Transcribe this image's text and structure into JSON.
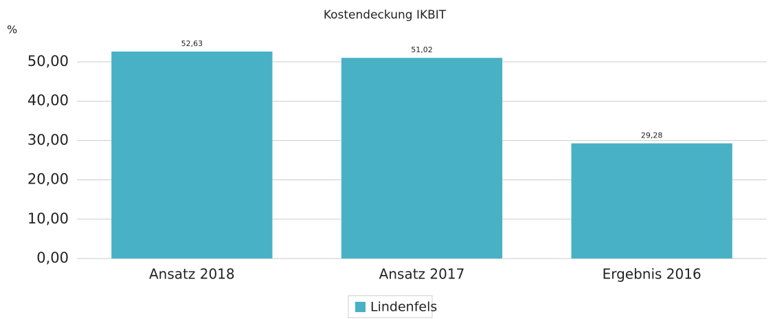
{
  "chart_data": {
    "type": "bar",
    "title": "Kostendeckung IKBIT",
    "y_label": "%",
    "categories": [
      "Ansatz 2018",
      "Ansatz 2017",
      "Ergebnis 2016"
    ],
    "series": [
      {
        "name": "Lindenfels",
        "color": "#48b1c5",
        "values": [
          52.63,
          51.02,
          29.28
        ],
        "value_labels": [
          "52,63",
          "51,02",
          "29,28"
        ]
      }
    ],
    "ylim": [
      0,
      55
    ],
    "yticks": [
      {
        "value": 0,
        "label": "0,00"
      },
      {
        "value": 10,
        "label": "10,00"
      },
      {
        "value": 20,
        "label": "20,00"
      },
      {
        "value": 30,
        "label": "30,00"
      },
      {
        "value": 40,
        "label": "40,00"
      },
      {
        "value": 50,
        "label": "50,00"
      }
    ],
    "grid": true,
    "legend": "bottom"
  }
}
